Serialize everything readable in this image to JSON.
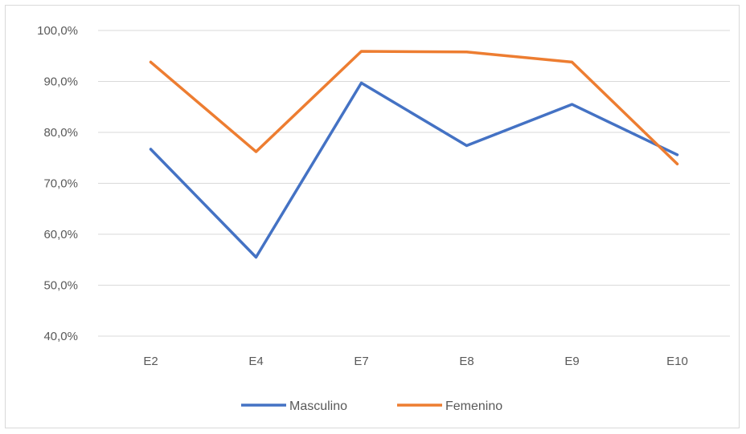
{
  "chart_data": {
    "type": "line",
    "title": "",
    "xlabel": "",
    "ylabel": "",
    "categories": [
      "E2",
      "E4",
      "E7",
      "E8",
      "E9",
      "E10"
    ],
    "ylim": [
      40,
      100
    ],
    "yticks": [
      40,
      50,
      60,
      70,
      80,
      90,
      100
    ],
    "ytick_labels": [
      "40,0%",
      "50,0%",
      "60,0%",
      "70,0%",
      "80,0%",
      "90,0%",
      "100,0%"
    ],
    "grid": true,
    "legend": "bottom",
    "series": [
      {
        "name": "Masculino",
        "color": "#4472c4",
        "values": [
          76.7,
          55.5,
          89.7,
          77.4,
          85.5,
          75.6
        ]
      },
      {
        "name": "Femenino",
        "color": "#ed7d31",
        "values": [
          93.8,
          76.2,
          95.9,
          95.8,
          93.8,
          73.8
        ]
      }
    ]
  }
}
